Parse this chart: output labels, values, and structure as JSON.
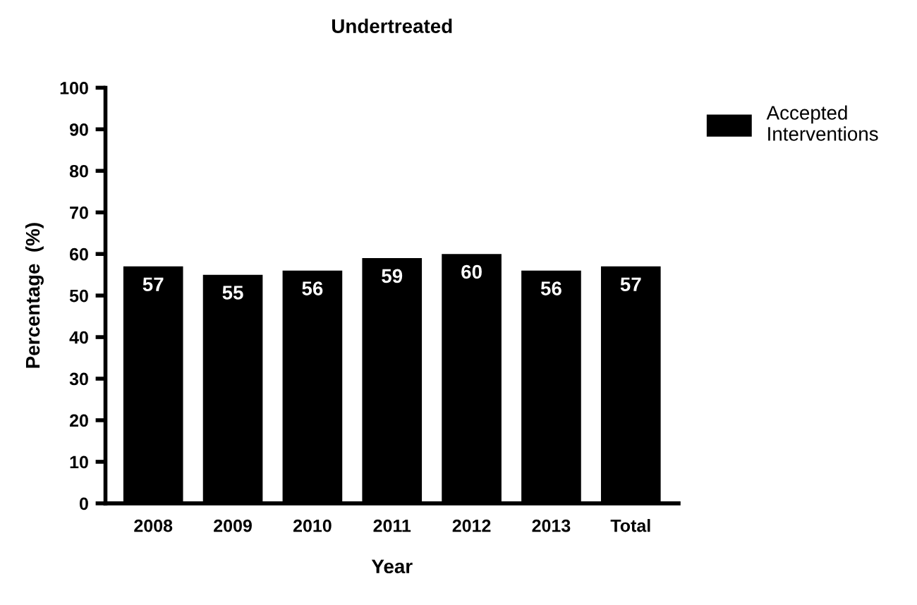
{
  "chart_data": {
    "type": "bar",
    "title": "Undertreated",
    "xlabel": "Year",
    "ylabel": "Percentage  (%)",
    "categories": [
      "2008",
      "2009",
      "2010",
      "2011",
      "2012",
      "2013",
      "Total"
    ],
    "series": [
      {
        "name": "Accepted Interventions",
        "color": "#000000",
        "values": [
          57,
          55,
          56,
          59,
          60,
          56,
          57
        ]
      }
    ],
    "ylim": [
      0,
      100
    ],
    "yticks": [
      0,
      10,
      20,
      30,
      40,
      50,
      60,
      70,
      80,
      90,
      100
    ],
    "data_labels": true,
    "grid": false,
    "legend": "top right"
  }
}
